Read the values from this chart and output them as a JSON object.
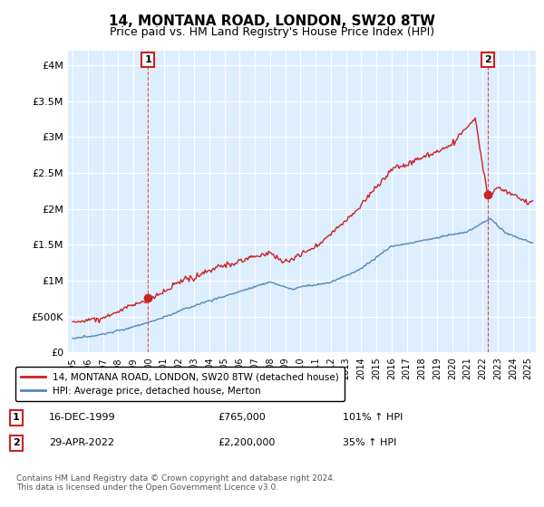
{
  "title": "14, MONTANA ROAD, LONDON, SW20 8TW",
  "subtitle": "Price paid vs. HM Land Registry's House Price Index (HPI)",
  "title_fontsize": 11,
  "subtitle_fontsize": 9,
  "background_color": "#ffffff",
  "chart_bg_color": "#ddeeff",
  "grid_color": "#ffffff",
  "ylim": [
    0,
    4200000
  ],
  "yticks": [
    0,
    500000,
    1000000,
    1500000,
    2000000,
    2500000,
    3000000,
    3500000,
    4000000
  ],
  "ytick_labels": [
    "£0",
    "£500K",
    "£1M",
    "£1.5M",
    "£2M",
    "£2.5M",
    "£3M",
    "£3.5M",
    "£4M"
  ],
  "hpi_color": "#5588bb",
  "price_color": "#cc2222",
  "sale1_x": 1999.96,
  "sale1_y": 765000,
  "sale2_x": 2022.33,
  "sale2_y": 2200000,
  "legend_label_price": "14, MONTANA ROAD, LONDON, SW20 8TW (detached house)",
  "legend_label_hpi": "HPI: Average price, detached house, Merton",
  "annotation1_label": "1",
  "annotation1_date": "16-DEC-1999",
  "annotation1_price": "£765,000",
  "annotation1_hpi": "101% ↑ HPI",
  "annotation2_label": "2",
  "annotation2_date": "29-APR-2022",
  "annotation2_price": "£2,200,000",
  "annotation2_hpi": "35% ↑ HPI",
  "footer": "Contains HM Land Registry data © Crown copyright and database right 2024.\nThis data is licensed under the Open Government Licence v3.0.",
  "xmin": 1994.7,
  "xmax": 2025.5
}
